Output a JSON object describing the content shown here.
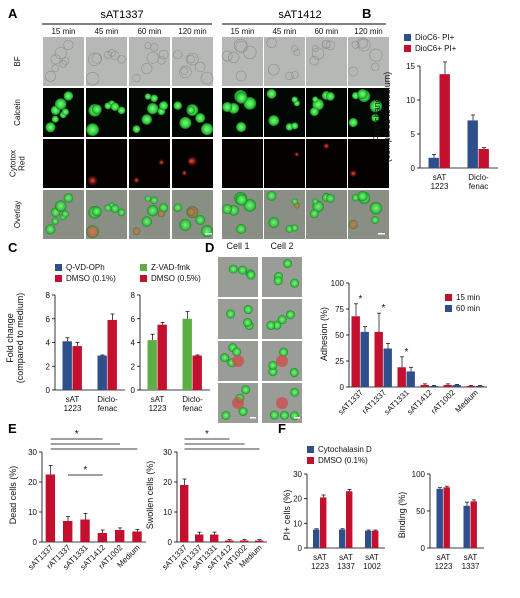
{
  "colors": {
    "blue": "#2f4e8c",
    "red": "#c3102f",
    "green": "#5cae45",
    "cell_green": "#38d84a",
    "cell_red": "#d21e1e",
    "bf_gray": "#b4b6b4"
  },
  "panel_letters": [
    "A",
    "B",
    "C",
    "D",
    "E",
    "F"
  ],
  "panel_a": {
    "groups": [
      "sAT1337",
      "sAT1412"
    ],
    "timepoints": [
      "15 min",
      "45 min",
      "60 min",
      "120 min"
    ],
    "rows": [
      "BF",
      "Calcein",
      "Cytotox\nRed",
      "Overlay"
    ]
  },
  "panel_d_images": {
    "columns": [
      "Cell 1",
      "Cell 2"
    ]
  },
  "chart_data": [
    {
      "panel": "B",
      "type": "bar",
      "ylabel": "Fold change\n(compared to medium)",
      "ylim": [
        0,
        15
      ],
      "yticks": [
        0,
        5,
        10,
        15
      ],
      "categories": [
        "sAT\n1223",
        "Diclo-\nfenac"
      ],
      "series": [
        {
          "name": "DioC6- PI+",
          "color": "blue",
          "values": [
            1.5,
            7.0
          ],
          "errors": [
            0.5,
            0.8
          ]
        },
        {
          "name": "DioC6+ PI+",
          "color": "red",
          "values": [
            13.8,
            2.8
          ],
          "errors": [
            1.8,
            0.2
          ]
        }
      ]
    },
    {
      "panel": "C",
      "type": "bar",
      "ylabel": "Fold change\n(compared to medium)",
      "ylim": [
        0,
        8
      ],
      "yticks": [
        0,
        2,
        4,
        6,
        8
      ],
      "subplots": [
        {
          "categories": [
            "sAT\n1223",
            "Diclo-\nfenac"
          ],
          "series": [
            {
              "name": "Q-VD-OPh",
              "color": "blue",
              "values": [
                4.1,
                2.9
              ],
              "errors": [
                0.3,
                0.05
              ]
            },
            {
              "name": "DMSO (0.1%)",
              "color": "red",
              "values": [
                3.7,
                5.9
              ],
              "errors": [
                0.3,
                0.5
              ]
            }
          ]
        },
        {
          "categories": [
            "sAT\n1223",
            "Diclo-\nfenac"
          ],
          "series": [
            {
              "name": "Z-VAD-fmk",
              "color": "green",
              "values": [
                4.2,
                6.0
              ],
              "errors": [
                0.5,
                0.6
              ]
            },
            {
              "name": "DMSO (0.5%)",
              "color": "red",
              "values": [
                5.5,
                2.9
              ],
              "errors": [
                0.2,
                0.05
              ]
            }
          ]
        }
      ]
    },
    {
      "panel": "D",
      "type": "bar",
      "ylabel": "Adhesion (%)",
      "ylim": [
        0,
        100
      ],
      "yticks": [
        0,
        25,
        50,
        75,
        100
      ],
      "categories": [
        "sAT1337",
        "rAT1337",
        "sAT1331",
        "sAT1412",
        "rAT1002",
        "Medium"
      ],
      "series": [
        {
          "name": "15 min",
          "color": "red",
          "values": [
            68,
            53,
            19,
            2,
            2,
            1
          ],
          "errors": [
            12,
            18,
            10,
            1,
            1,
            0.5
          ]
        },
        {
          "name": "60 min",
          "color": "blue",
          "values": [
            53,
            37,
            15,
            1,
            2,
            1
          ],
          "errors": [
            5,
            5,
            4,
            0.5,
            0.5,
            0.5
          ]
        }
      ],
      "annotations": [
        "*",
        "*",
        "*"
      ]
    },
    {
      "panel": "E-left",
      "type": "bar",
      "ylabel": "Dead cells (%)",
      "ylim": [
        0,
        30
      ],
      "yticks": [
        0,
        10,
        20,
        30
      ],
      "categories": [
        "sAT1337",
        "rAT1337",
        "sAT1331",
        "sAT1412",
        "rAT1002",
        "Medium"
      ],
      "series": [
        {
          "color": "red",
          "values": [
            22.5,
            7.0,
            7.5,
            3.0,
            4.0,
            3.5
          ],
          "errors": [
            3.0,
            1.5,
            2.0,
            1.0,
            0.7,
            0.7
          ]
        }
      ],
      "significance": [
        "*",
        "*"
      ]
    },
    {
      "panel": "E-right",
      "type": "bar",
      "ylabel": "Swollen cells (%)",
      "ylim": [
        0,
        30
      ],
      "yticks": [
        0,
        10,
        20,
        30
      ],
      "categories": [
        "sAT1337",
        "rAT1337",
        "sAT1331",
        "sAT1412",
        "rAT1002",
        "Medium"
      ],
      "series": [
        {
          "color": "red",
          "values": [
            19.0,
            2.5,
            2.5,
            0.5,
            0.5,
            0.5
          ],
          "errors": [
            2.0,
            0.8,
            0.8,
            0.3,
            0.3,
            0.3
          ]
        }
      ],
      "significance": [
        "*"
      ]
    },
    {
      "panel": "F-left",
      "type": "bar",
      "ylabel": "PI+ cells (%)",
      "ylim": [
        0,
        30
      ],
      "yticks": [
        0,
        10,
        20,
        30
      ],
      "categories": [
        "sAT\n1223",
        "sAT\n1337",
        "sAT\n1002"
      ],
      "series": [
        {
          "name": "Cytochalasin D",
          "color": "blue",
          "values": [
            7.5,
            7.5,
            7.0
          ],
          "errors": [
            0.3,
            0.3,
            0.3
          ]
        },
        {
          "name": "DMSO (0.1%)",
          "color": "red",
          "values": [
            20.5,
            23.0,
            7.0
          ],
          "errors": [
            1.0,
            0.8,
            0.3
          ]
        }
      ]
    },
    {
      "panel": "F-right",
      "type": "bar",
      "ylabel": "Binding (%)",
      "ylim": [
        0,
        100
      ],
      "yticks": [
        0,
        50,
        100
      ],
      "categories": [
        "sAT\n1223",
        "sAT\n1337"
      ],
      "series": [
        {
          "color": "blue",
          "values": [
            80,
            57
          ],
          "errors": [
            1.5,
            5
          ]
        },
        {
          "color": "red",
          "values": [
            82,
            63
          ],
          "errors": [
            1.5,
            2
          ]
        }
      ]
    }
  ]
}
